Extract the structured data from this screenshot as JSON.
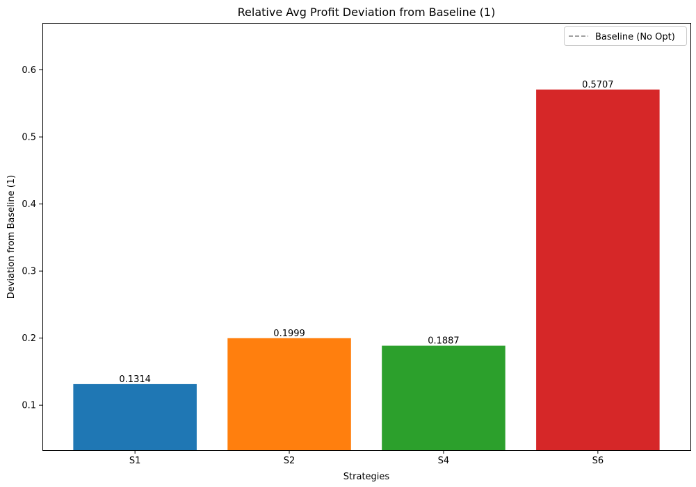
{
  "chart_data": {
    "type": "bar",
    "title": "Relative Avg Profit Deviation from Baseline (1)",
    "xlabel": "Strategies",
    "ylabel": "Deviation from Baseline (1)",
    "categories": [
      "S1",
      "S2",
      "S4",
      "S6"
    ],
    "values": [
      0.1314,
      0.1999,
      0.1887,
      0.5707
    ],
    "value_labels": [
      "0.1314",
      "0.1999",
      "0.1887",
      "0.5707"
    ],
    "colors": [
      "#1f77b4",
      "#ff7f0e",
      "#2ca02c",
      "#d62728"
    ],
    "ylim": [
      0.0329,
      0.67
    ],
    "yticks": [
      0.1,
      0.2,
      0.3,
      0.4,
      0.5,
      0.6
    ],
    "ytick_labels": [
      "0.1",
      "0.2",
      "0.3",
      "0.4",
      "0.5",
      "0.6"
    ],
    "grid": false,
    "legend": {
      "placement": "top-right",
      "entries": [
        {
          "label": "Baseline (No Opt)",
          "style": "dashed",
          "color": "#808080"
        }
      ]
    }
  }
}
